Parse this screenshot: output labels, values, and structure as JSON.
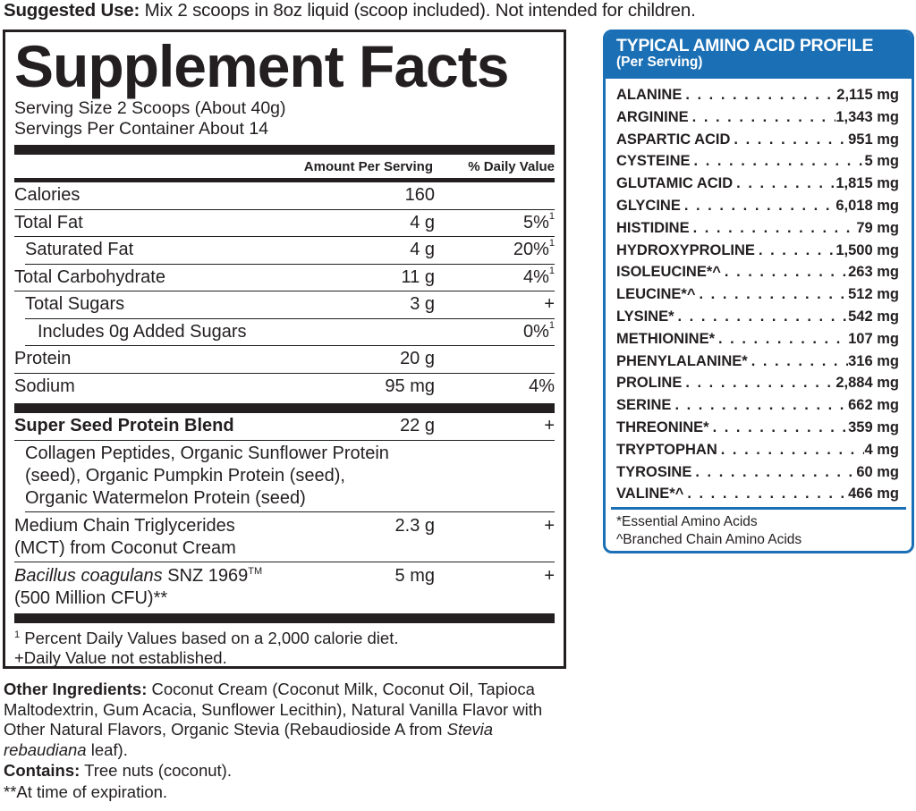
{
  "suggested_use": {
    "label": "Suggested Use:",
    "text": " Mix 2 scoops in 8oz liquid (scoop included). Not intended for children."
  },
  "facts": {
    "title": "Supplement Facts",
    "serving_size": "Serving Size 2 Scoops (About 40g)",
    "servings_per_container": "Servings Per Container About 14",
    "col_amount": "Amount Per Serving",
    "col_dv": "% Daily Value",
    "rows": [
      {
        "name": "Calories",
        "amount": "160",
        "dv": ""
      },
      {
        "name": "Total Fat",
        "amount": "4 g",
        "dv": "5%",
        "sup": "1"
      },
      {
        "name": "Saturated Fat",
        "amount": "4 g",
        "dv": "20%",
        "sup": "1"
      },
      {
        "name": "Total Carbohydrate",
        "amount": "11 g",
        "dv": "4%",
        "sup": "1"
      },
      {
        "name": "Total Sugars",
        "amount": "3 g",
        "dv": "+"
      },
      {
        "name": "Includes 0g Added Sugars",
        "amount": "",
        "dv": "0%",
        "sup": "1"
      },
      {
        "name": "Protein",
        "amount": "20 g",
        "dv": ""
      },
      {
        "name": "Sodium",
        "amount": "95 mg",
        "dv": "4%"
      }
    ],
    "blend": {
      "name": "Super Seed Protein Blend",
      "amount": "22 g",
      "dv": "+",
      "desc": "Collagen Peptides, Organic Sunflower Protein (seed), Organic Pumpkin Protein (seed), Organic Watermelon Protein (seed)"
    },
    "mct": {
      "name": "Medium Chain Triglycerides (MCT) from Coconut Cream",
      "amount": "2.3 g",
      "dv": "+"
    },
    "bacillus": {
      "name_italic": "Bacillus coagulans",
      "name_rest": " SNZ 1969",
      "tm": "TM",
      "line2": "(500 Million CFU)**",
      "amount": "5 mg",
      "dv": "+"
    },
    "footnote1_sup": "1",
    "footnote1": " Percent Daily Values based on a 2,000 calorie diet.",
    "footnote2": "+Daily Value not established."
  },
  "amino": {
    "title": "TYPICAL AMINO ACID PROFILE",
    "subtitle": "(Per Serving)",
    "accent_color": "#1a6fb5",
    "items": [
      {
        "name": "ALANINE",
        "value": "2,115 mg"
      },
      {
        "name": "ARGININE",
        "value": "1,343 mg"
      },
      {
        "name": "ASPARTIC ACID",
        "value": "951 mg"
      },
      {
        "name": "CYSTEINE",
        "value": "5 mg"
      },
      {
        "name": "GLUTAMIC ACID",
        "value": "1,815 mg"
      },
      {
        "name": "GLYCINE",
        "value": "6,018 mg"
      },
      {
        "name": "HISTIDINE",
        "value": "79 mg"
      },
      {
        "name": "HYDROXYPROLINE",
        "value": "1,500 mg"
      },
      {
        "name": "ISOLEUCINE*^",
        "value": "263 mg"
      },
      {
        "name": "LEUCINE*^",
        "value": "512 mg"
      },
      {
        "name": "LYSINE*",
        "value": "542 mg"
      },
      {
        "name": "METHIONINE*",
        "value": "107 mg"
      },
      {
        "name": "PHENYLALANINE*",
        "value": "316 mg"
      },
      {
        "name": "PROLINE",
        "value": "2,884 mg"
      },
      {
        "name": "SERINE",
        "value": "662 mg"
      },
      {
        "name": "THREONINE*",
        "value": "359 mg"
      },
      {
        "name": "TRYPTOPHAN",
        "value": "4 mg"
      },
      {
        "name": "TYROSINE",
        "value": "60 mg"
      },
      {
        "name": "VALINE*^",
        "value": "466 mg"
      }
    ],
    "note1": "*Essential Amino Acids",
    "note2": "^Branched Chain Amino Acids"
  },
  "other": {
    "label": "Other Ingredients:",
    "text1": " Coconut Cream (Coconut Milk, Coconut Oil, Tapioca Maltodextrin, Gum Acacia, Sunflower Lecithin), Natural Vanilla Flavor with Other Natural Flavors, Organic Stevia (Rebaudioside A from ",
    "italic": "Stevia rebaudiana",
    "text2": " leaf).",
    "contains_label": "Contains:",
    "contains": " Tree nuts (coconut).",
    "expiration": "**At time of expiration."
  }
}
